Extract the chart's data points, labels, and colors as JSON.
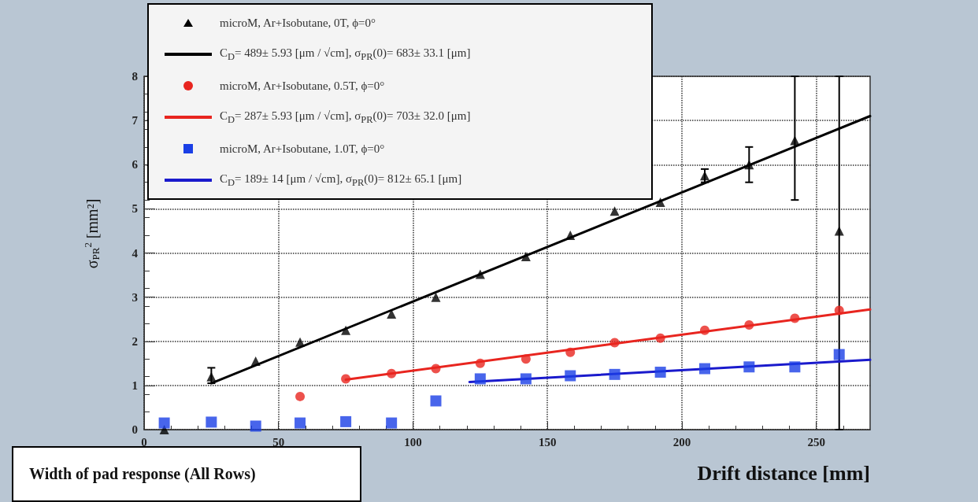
{
  "chart_data": {
    "type": "scatter",
    "xlabel": "Drift distance [mm]",
    "ylabel": "σ$_{PR}$$^{2}$ [mm²]",
    "annotations": [
      "Width of pad response (All Rows)"
    ],
    "xlim": [
      0,
      270
    ],
    "xticks": [
      0,
      50,
      100,
      150,
      200,
      250
    ],
    "ylim": [
      0,
      8
    ],
    "yticks": [
      0,
      1,
      2,
      3,
      4,
      5,
      6,
      7,
      8
    ],
    "grid": true,
    "legend": "top left",
    "series": [
      {
        "name": "microM, Ar+Isobutane, 0T, ϕ=0°",
        "type": "scatter",
        "marker": "triangle",
        "color": "#000000",
        "x": [
          7.5,
          25,
          41.5,
          58,
          75,
          92,
          108.5,
          125,
          142,
          158.5,
          175,
          192,
          208.5,
          225,
          242,
          258.5
        ],
        "values": [
          0,
          1.2,
          1.55,
          1.98,
          2.25,
          2.62,
          3.0,
          3.52,
          3.92,
          4.4,
          4.95,
          5.15,
          5.75,
          6.0,
          6.55,
          4.5
        ],
        "errors": [
          null,
          [
            1.05,
            1.4
          ],
          null,
          null,
          null,
          null,
          null,
          null,
          null,
          null,
          null,
          null,
          [
            5.6,
            5.9
          ],
          [
            5.6,
            6.4
          ],
          [
            5.2,
            8
          ],
          [
            0,
            8
          ]
        ]
      },
      {
        "name": "C$_{D}$= 489± 5.93 [μm / √cm], σ$_{PR}$(0)=  683± 33.1 [μm]",
        "type": "line",
        "color": "#000000",
        "x": [
          25,
          270
        ],
        "values": [
          1.05,
          7.1
        ]
      },
      {
        "name": "microM, Ar+Isobutane, 0.5T, ϕ=0°",
        "type": "scatter",
        "marker": "circle",
        "color": "#e8251f",
        "x": [
          58,
          75,
          92,
          108.5,
          125,
          142,
          158.5,
          175,
          192,
          208.5,
          225,
          242,
          258.5
        ],
        "values": [
          0.75,
          1.15,
          1.27,
          1.38,
          1.5,
          1.6,
          1.75,
          1.97,
          2.07,
          2.25,
          2.37,
          2.52,
          2.7
        ]
      },
      {
        "name": "C$_{D}$= 287± 5.93 [μm / √cm], σ$_{PR}$(0)=  703± 32.0 [μm]",
        "type": "line",
        "color": "#e8251f",
        "x": [
          75,
          270
        ],
        "values": [
          1.13,
          2.72
        ]
      },
      {
        "name": "microM, Ar+Isobutane, 1.0T, ϕ=0°",
        "type": "scatter",
        "marker": "square",
        "color": "#1a3fe6",
        "x": [
          7.5,
          25,
          41.5,
          58,
          75,
          92,
          108.5,
          125,
          142,
          158.5,
          175,
          192,
          208.5,
          225,
          242,
          258.5
        ],
        "values": [
          0.15,
          0.17,
          0.08,
          0.15,
          0.18,
          0.15,
          0.65,
          1.15,
          1.15,
          1.22,
          1.25,
          1.3,
          1.38,
          1.42,
          1.42,
          1.7
        ]
      },
      {
        "name": "C$_{D}$= 189±   14 [μm / √cm], σ$_{PR}$(0)=  812± 65.1 [μm]",
        "type": "line",
        "color": "#1a1acc",
        "x": [
          121,
          270
        ],
        "values": [
          1.08,
          1.58
        ]
      }
    ]
  }
}
